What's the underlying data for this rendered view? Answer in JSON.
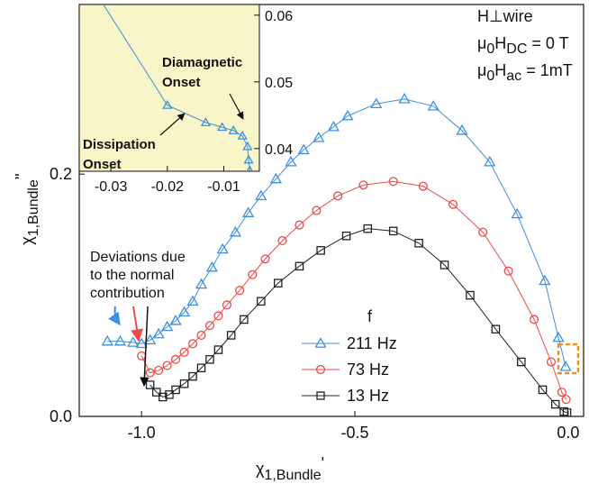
{
  "chart_data": [
    {
      "type": "line",
      "xlabel": [
        "χ",
        "1,Bundle",
        "'"
      ],
      "ylabel": [
        "χ",
        "1,Bundle",
        "''"
      ],
      "xlim": [
        -1.146,
        0.036
      ],
      "ylim": [
        0,
        0.34
      ],
      "xticks": [
        {
          "value": -1.0,
          "label": "-1.0"
        },
        -0.5,
        {
          "value": 0.0,
          "label": "0.0"
        }
      ],
      "yticks": [
        {
          "value": 0.0,
          "label": "0.0"
        },
        0.2
      ],
      "legend_title": "f",
      "series": [
        {
          "name": "211 Hz",
          "color": "#3d8fe0",
          "marker": "triangle",
          "x": [
            -1.08,
            -1.05,
            -1.02,
            -1.0,
            -0.98,
            -0.96,
            -0.94,
            -0.92,
            -0.9,
            -0.88,
            -0.86,
            -0.835,
            -0.81,
            -0.78,
            -0.75,
            -0.72,
            -0.685,
            -0.65,
            -0.62,
            -0.585,
            -0.55,
            -0.517,
            -0.45,
            -0.384,
            -0.316,
            -0.249,
            -0.184,
            -0.12,
            -0.055,
            -0.023,
            -0.006
          ],
          "values": [
            0.062,
            0.062,
            0.061,
            0.06,
            0.063,
            0.068,
            0.074,
            0.079,
            0.086,
            0.095,
            0.109,
            0.123,
            0.138,
            0.152,
            0.168,
            0.182,
            0.196,
            0.21,
            0.22,
            0.23,
            0.239,
            0.248,
            0.258,
            0.262,
            0.256,
            0.236,
            0.21,
            0.167,
            0.112,
            0.065,
            0.041
          ]
        },
        {
          "name": "73 Hz",
          "color": "#f04848",
          "marker": "circle",
          "x": [
            -1.0,
            -0.98,
            -0.96,
            -0.94,
            -0.92,
            -0.9,
            -0.88,
            -0.86,
            -0.84,
            -0.82,
            -0.8,
            -0.77,
            -0.74,
            -0.71,
            -0.67,
            -0.63,
            -0.59,
            -0.54,
            -0.48,
            -0.41,
            -0.34,
            -0.27,
            -0.2,
            -0.14,
            -0.08,
            -0.04,
            -0.015,
            -0.005
          ],
          "values": [
            0.05,
            0.036,
            0.038,
            0.042,
            0.047,
            0.053,
            0.06,
            0.067,
            0.075,
            0.083,
            0.092,
            0.104,
            0.117,
            0.13,
            0.145,
            0.158,
            0.17,
            0.182,
            0.191,
            0.194,
            0.19,
            0.175,
            0.152,
            0.12,
            0.08,
            0.045,
            0.02,
            0.014
          ]
        },
        {
          "name": "13 Hz",
          "color": "#222222",
          "marker": "square",
          "x": [
            -0.98,
            -0.965,
            -0.95,
            -0.935,
            -0.92,
            -0.9,
            -0.88,
            -0.86,
            -0.84,
            -0.82,
            -0.79,
            -0.76,
            -0.72,
            -0.68,
            -0.63,
            -0.58,
            -0.52,
            -0.47,
            -0.41,
            -0.35,
            -0.29,
            -0.23,
            -0.17,
            -0.11,
            -0.06,
            -0.03,
            -0.01,
            -0.003
          ],
          "values": [
            0.026,
            0.02,
            0.016,
            0.018,
            0.022,
            0.027,
            0.033,
            0.04,
            0.047,
            0.055,
            0.067,
            0.08,
            0.095,
            0.11,
            0.124,
            0.137,
            0.149,
            0.155,
            0.153,
            0.143,
            0.125,
            0.1,
            0.072,
            0.045,
            0.022,
            0.01,
            0.004,
            0.003
          ]
        }
      ],
      "annotations": {
        "field": "H⊥wire",
        "dc": [
          "μ",
          "0",
          "H",
          "DC",
          " = 0 T"
        ],
        "ac": [
          "μ",
          "0",
          "H",
          "ac",
          " = 1mT"
        ],
        "deviations": [
          "Deviations due",
          "to the normal",
          "contribution"
        ]
      }
    },
    {
      "type": "line",
      "xlim": [
        -0.0356,
        -0.0037
      ],
      "ylim": [
        0.0366,
        0.0616
      ],
      "xticks": [
        -0.03,
        -0.02,
        -0.01
      ],
      "yticks": [
        0.04,
        0.05,
        0.06
      ],
      "background": "#f8f5c9",
      "series": [
        {
          "color": "#3d8fe0",
          "marker": "triangle",
          "x": [
            -0.032,
            -0.02,
            -0.0132,
            -0.0103,
            -0.0083,
            -0.0067,
            -0.0058,
            -0.0056,
            -0.0054
          ],
          "values": [
            0.0625,
            0.0465,
            0.0439,
            0.0432,
            0.0427,
            0.0419,
            0.0403,
            0.0383,
            0.0367
          ]
        }
      ],
      "annotations": {
        "diamagnetic": [
          "Diamagnetic",
          "Onset"
        ],
        "dissipation": [
          "Dissipation",
          "Onset"
        ]
      }
    }
  ]
}
